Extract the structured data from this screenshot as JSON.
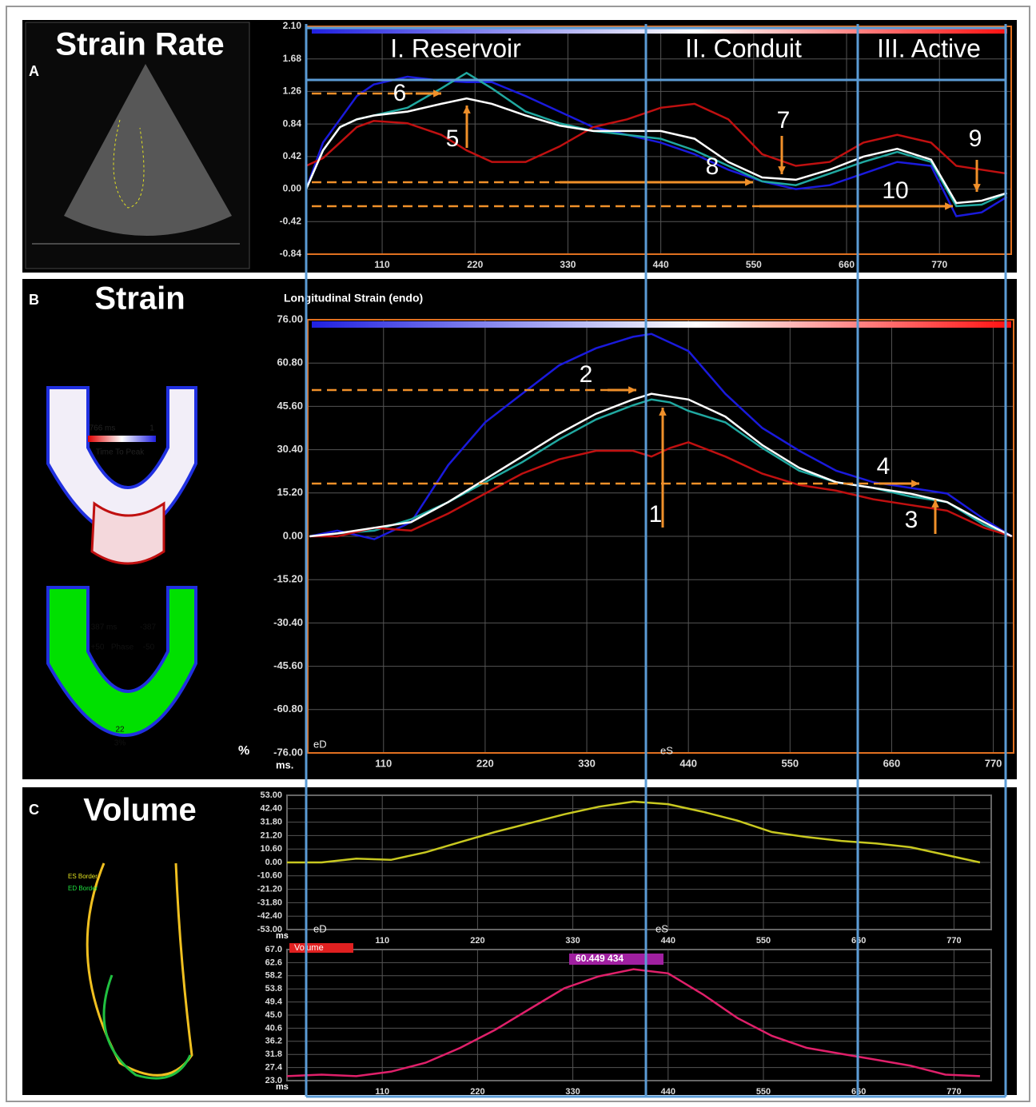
{
  "chart_data": [
    {
      "type": "line",
      "panel": "A",
      "title": "Strain Rate",
      "phases": [
        "I. Reservoir",
        "II. Conduit",
        "III. Active"
      ],
      "annotations": [
        "5",
        "6",
        "7",
        "8",
        "9",
        "10"
      ],
      "x": [
        20,
        40,
        60,
        80,
        100,
        140,
        180,
        210,
        240,
        280,
        320,
        360,
        400,
        440,
        480,
        520,
        560,
        600,
        640,
        680,
        720,
        760,
        790,
        820,
        850
      ],
      "series": [
        {
          "color": "#1a1adc",
          "values": [
            0,
            0.6,
            0.9,
            1.2,
            1.35,
            1.45,
            1.4,
            1.38,
            1.38,
            1.2,
            1.0,
            0.8,
            0.7,
            0.6,
            0.45,
            0.25,
            0.1,
            0.0,
            0.05,
            0.2,
            0.35,
            0.3,
            -0.35,
            -0.3,
            -0.1
          ]
        },
        {
          "color": "#20a8a0",
          "values": [
            0,
            0.5,
            0.8,
            0.9,
            0.95,
            1.05,
            1.3,
            1.5,
            1.3,
            1.0,
            0.85,
            0.75,
            0.7,
            0.65,
            0.5,
            0.3,
            0.1,
            0.05,
            0.2,
            0.35,
            0.48,
            0.35,
            -0.22,
            -0.2,
            -0.05
          ]
        },
        {
          "color": "#c01010",
          "values": [
            0.3,
            0.4,
            0.6,
            0.8,
            0.88,
            0.85,
            0.7,
            0.5,
            0.35,
            0.35,
            0.55,
            0.8,
            0.9,
            1.05,
            1.1,
            0.9,
            0.45,
            0.3,
            0.35,
            0.6,
            0.7,
            0.6,
            0.3,
            0.25,
            0.2
          ]
        },
        {
          "color": "#ffffff",
          "values": [
            0,
            0.5,
            0.8,
            0.9,
            0.95,
            1.0,
            1.1,
            1.17,
            1.1,
            0.95,
            0.82,
            0.75,
            0.75,
            0.75,
            0.65,
            0.35,
            0.15,
            0.12,
            0.25,
            0.42,
            0.52,
            0.38,
            -0.18,
            -0.15,
            -0.05
          ]
        }
      ],
      "xlim": [
        20,
        855
      ],
      "xticks": [
        110,
        220,
        330,
        440,
        550,
        660,
        770
      ],
      "ylim": [
        -0.84,
        2.1
      ],
      "yticks": [
        {
          "value": -0.84,
          "label": "-0.84"
        },
        {
          "value": -0.42,
          "label": "-0.42"
        },
        {
          "value": 0,
          "label": "0.00"
        },
        {
          "value": 0.42,
          "label": "0.42"
        },
        {
          "value": 0.84,
          "label": "0.84"
        },
        {
          "value": 1.26,
          "label": "1.26"
        },
        {
          "value": 1.68,
          "label": "1.68"
        },
        {
          "value": 2.1,
          "label": "2.10"
        }
      ],
      "grid": true
    },
    {
      "type": "line",
      "panel": "B",
      "title": "Strain",
      "subtitle": "Longitudinal Strain (endo)",
      "xlabel": "ms.",
      "ylabel": "%",
      "markers": [
        "eD",
        "eS"
      ],
      "annotations": [
        "1",
        "2",
        "3",
        "4"
      ],
      "inset_labels": [
        "766 ms",
        "1",
        "Time To Peak",
        "387 ms",
        "-387",
        "+50",
        "Phase",
        "-50",
        "22",
        "3%"
      ],
      "x": [
        30,
        60,
        100,
        140,
        180,
        220,
        260,
        300,
        340,
        380,
        400,
        420,
        440,
        480,
        520,
        560,
        600,
        640,
        680,
        720,
        760,
        790
      ],
      "series": [
        {
          "color": "#1a1adc",
          "values": [
            0,
            2,
            -1,
            5,
            25,
            40,
            50,
            60,
            66,
            70,
            71,
            68,
            65,
            50,
            38,
            30,
            23,
            19,
            17,
            15,
            6,
            0
          ]
        },
        {
          "color": "#20a8a0",
          "values": [
            0,
            1,
            2,
            6,
            12,
            19,
            26,
            34,
            41,
            46,
            48,
            47,
            44,
            40,
            31,
            23,
            19,
            17,
            14,
            12,
            4,
            0
          ]
        },
        {
          "color": "#c01010",
          "values": [
            0,
            0,
            3,
            2,
            8,
            15,
            22,
            27,
            30,
            30,
            28,
            31,
            33,
            28,
            22,
            18,
            16,
            13,
            11,
            9,
            3,
            0
          ]
        },
        {
          "color": "#ffffff",
          "values": [
            0,
            1,
            3,
            5,
            12,
            20,
            28,
            36,
            43,
            48,
            50,
            49,
            48,
            42,
            32,
            24,
            19,
            17,
            15,
            12,
            5,
            0
          ]
        }
      ],
      "xlim": [
        28,
        792
      ],
      "xticks": [
        110,
        220,
        330,
        440,
        550,
        660,
        770
      ],
      "ylim": [
        -76,
        76
      ],
      "yticks": [
        {
          "value": -76,
          "label": "-76.00"
        },
        {
          "value": -60.8,
          "label": "-60.80"
        },
        {
          "value": -45.6,
          "label": "-45.60"
        },
        {
          "value": -30.4,
          "label": "-30.40"
        },
        {
          "value": -15.2,
          "label": "-15.20"
        },
        {
          "value": 0,
          "label": "0.00"
        },
        {
          "value": 15.2,
          "label": "15.20"
        },
        {
          "value": 30.4,
          "label": "30.40"
        },
        {
          "value": 45.6,
          "label": "45.60"
        },
        {
          "value": 60.8,
          "label": "60.80"
        },
        {
          "value": 76,
          "label": "76.00"
        }
      ],
      "grid": true
    },
    {
      "type": "line",
      "panel": "C",
      "title": "Volume",
      "xlabel": "ms",
      "markers": [
        "eD",
        "eS"
      ],
      "inset_labels": [
        "ES Border",
        "ED Border"
      ],
      "x": [
        0,
        40,
        80,
        120,
        160,
        200,
        240,
        280,
        320,
        360,
        400,
        440,
        480,
        520,
        560,
        600,
        640,
        680,
        720,
        760,
        800
      ],
      "series": [
        {
          "color": "#c8c820",
          "values": [
            0,
            0,
            3,
            2,
            8,
            16,
            24,
            31,
            38,
            44,
            48,
            46,
            40,
            33,
            24,
            20,
            17,
            15,
            12,
            6,
            0
          ]
        }
      ],
      "xlim": [
        0,
        813
      ],
      "xticks": [
        110,
        220,
        330,
        440,
        550,
        660,
        770
      ],
      "ylim": [
        -53,
        53
      ],
      "yticks": [
        {
          "value": -53,
          "label": "-53.00"
        },
        {
          "value": -42.4,
          "label": "-42.40"
        },
        {
          "value": -31.8,
          "label": "-31.80"
        },
        {
          "value": -21.2,
          "label": "-21.20"
        },
        {
          "value": -10.6,
          "label": "-10.60"
        },
        {
          "value": 0,
          "label": "0.00"
        },
        {
          "value": 10.6,
          "label": "10.60"
        },
        {
          "value": 21.2,
          "label": "21.20"
        },
        {
          "value": 31.8,
          "label": "31.80"
        },
        {
          "value": 42.4,
          "label": "42.40"
        },
        {
          "value": 53,
          "label": "53.00"
        }
      ],
      "grid": true
    },
    {
      "type": "line",
      "tag": "Volume",
      "value_tag": "60.449  434",
      "xlabel": "ms",
      "x": [
        0,
        40,
        80,
        120,
        160,
        200,
        240,
        280,
        320,
        360,
        400,
        440,
        480,
        520,
        560,
        600,
        640,
        680,
        720,
        760,
        800
      ],
      "series": [
        {
          "color": "#e0206a",
          "values": [
            24.5,
            25,
            24.5,
            26,
            29,
            34,
            40,
            47,
            54,
            58,
            60.4,
            59,
            52,
            44,
            38,
            34,
            32,
            30,
            28,
            25,
            24.5
          ]
        }
      ],
      "xlim": [
        0,
        813
      ],
      "xticks": [
        110,
        220,
        330,
        440,
        550,
        660,
        770
      ],
      "ylim": [
        23,
        67
      ],
      "yticks": [
        {
          "value": 23,
          "label": "23.0"
        },
        27.4,
        31.8,
        36.2,
        40.6,
        {
          "value": 45,
          "label": "45.0"
        },
        49.4,
        53.8,
        58.2,
        62.6,
        {
          "value": 67,
          "label": "67.0"
        }
      ],
      "grid": true
    }
  ]
}
